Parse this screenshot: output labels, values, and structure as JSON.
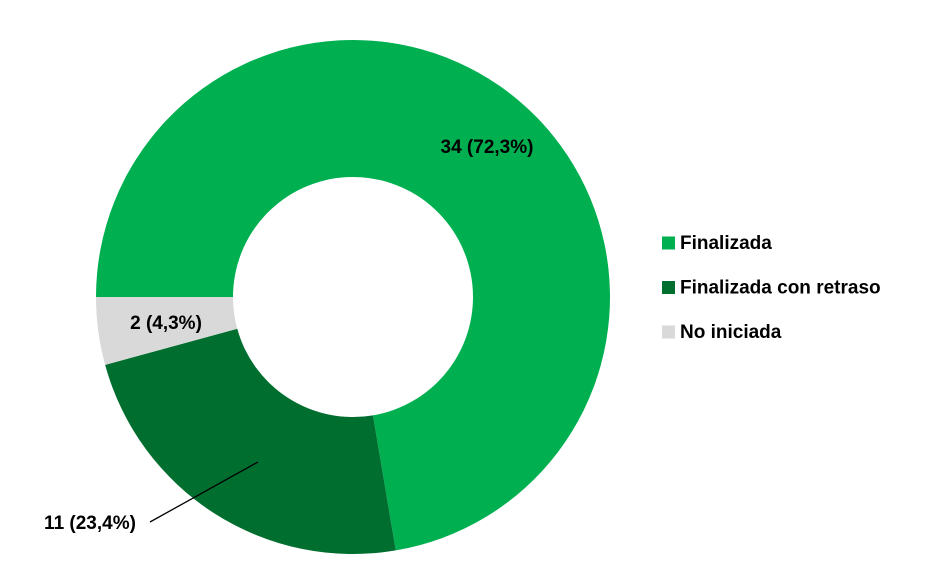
{
  "chart_data": {
    "type": "donut",
    "categories": [
      "Finalizada",
      "Finalizada con retraso",
      "No iniciada"
    ],
    "values": [
      34,
      11,
      2
    ],
    "value_labels": [
      "34 (72,3%)",
      "11 (23,4%)",
      "2 (4,3%)"
    ],
    "colors": [
      "#00b050",
      "#006e2e",
      "#d9d9d9"
    ],
    "legend": "right"
  }
}
